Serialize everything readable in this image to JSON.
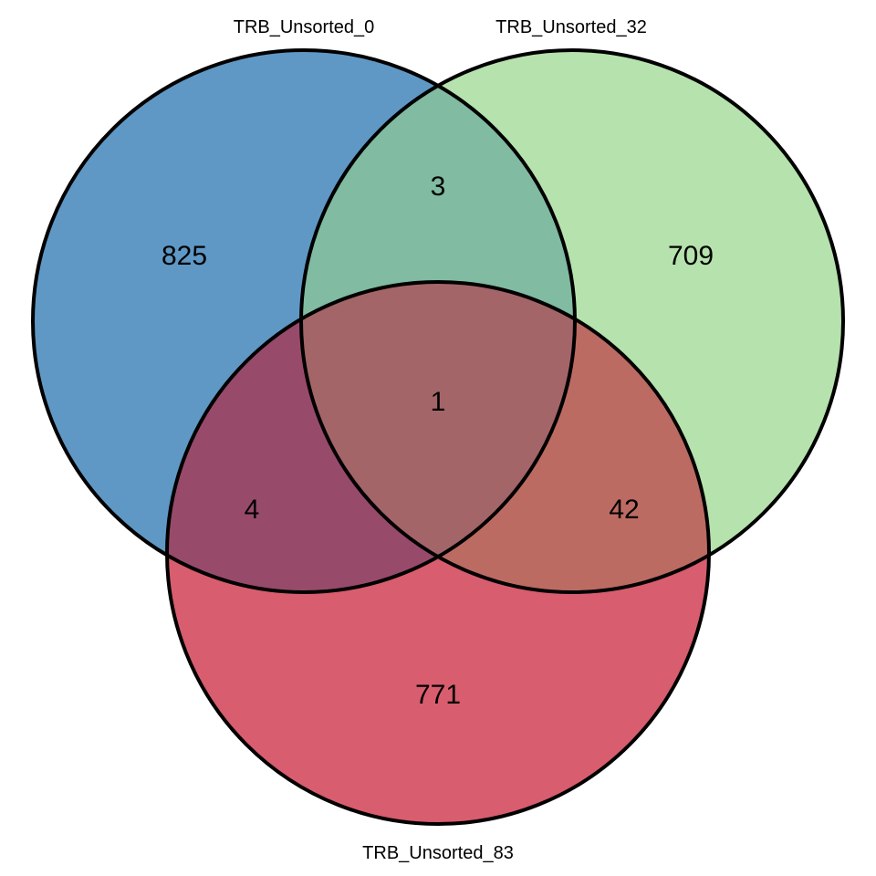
{
  "diagram": {
    "type": "venn-3",
    "sets": [
      {
        "id": "a",
        "label": "TRB_Unsorted_0",
        "color": "#5f98c5"
      },
      {
        "id": "b",
        "label": "TRB_Unsorted_32",
        "color": "#b6e2ad"
      },
      {
        "id": "c",
        "label": "TRB_Unsorted_83",
        "color": "#d85d6e"
      }
    ],
    "regions": {
      "a_only": "825",
      "b_only": "709",
      "c_only": "771",
      "ab": "3",
      "ac": "4",
      "bc": "42",
      "abc": "1"
    },
    "region_colors": {
      "ab": "#80bba2",
      "ac": "#984a6b",
      "bc": "#bc6b63",
      "abc": "#a46568"
    }
  }
}
